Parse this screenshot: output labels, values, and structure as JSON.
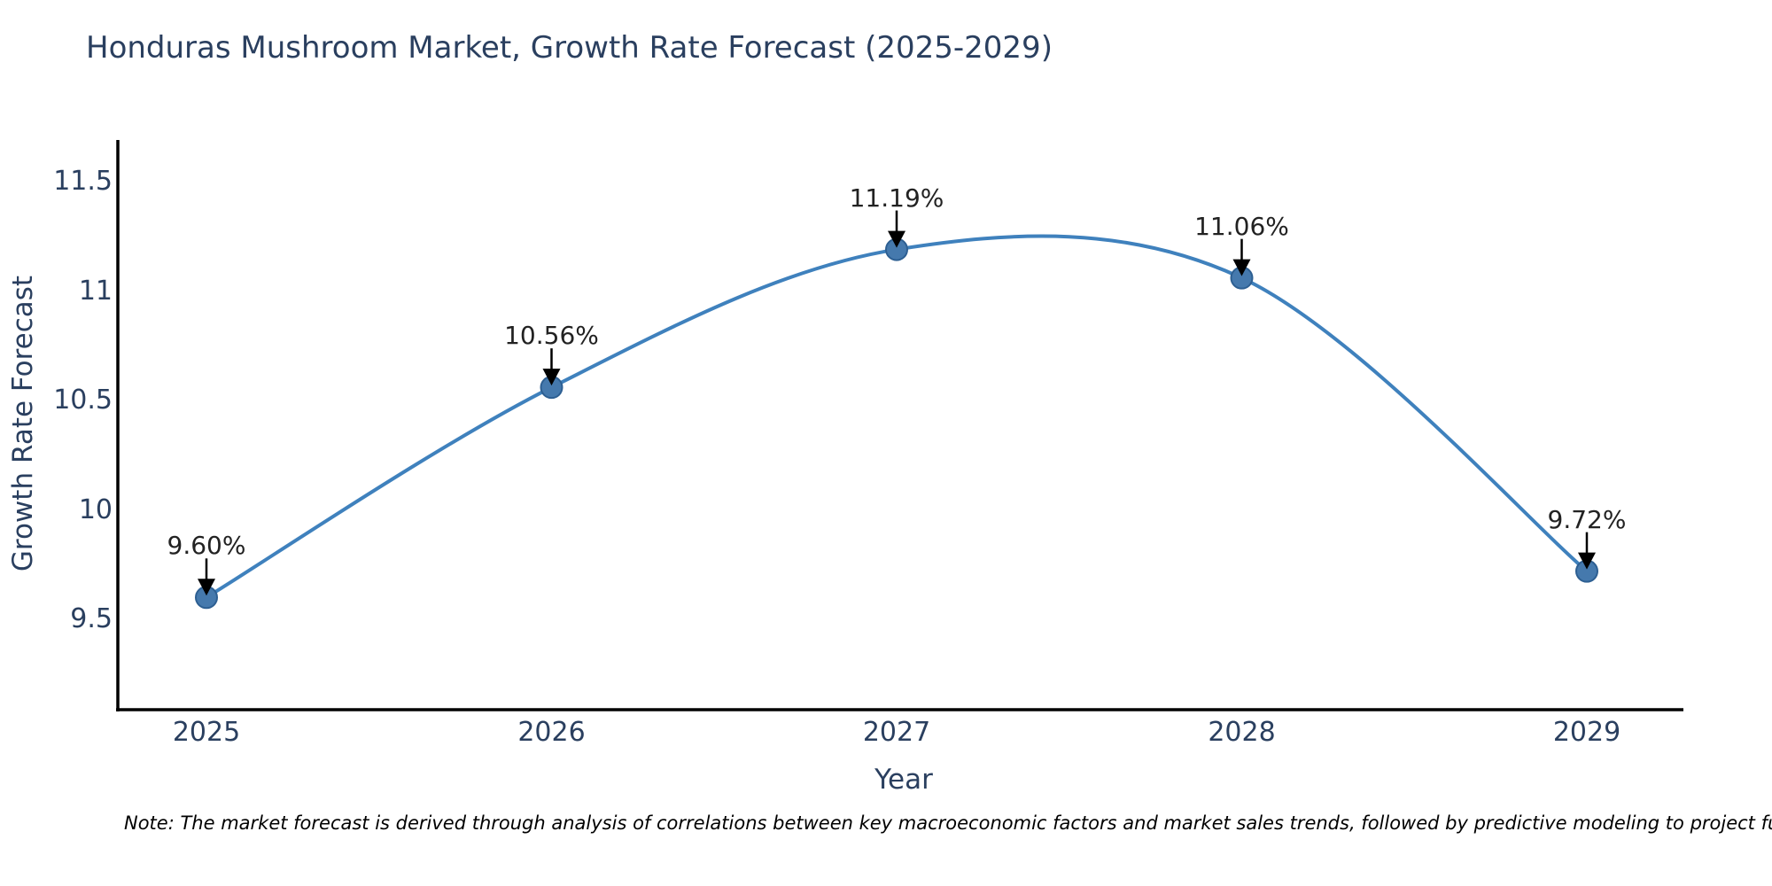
{
  "chart_data": {
    "type": "line",
    "line_shape": "spline",
    "title": "Honduras Mushroom Market, Growth Rate Forecast (2025-2029)",
    "xlabel": "Year",
    "ylabel": "Growth Rate Forecast",
    "categories": [
      "2025",
      "2026",
      "2027",
      "2028",
      "2029"
    ],
    "series": [
      {
        "name": "Growth Rate Forecast",
        "values": [
          9.6,
          10.56,
          11.19,
          11.06,
          9.72
        ],
        "point_labels": [
          "9.60%",
          "10.56%",
          "11.19%",
          "11.06%",
          "9.72%"
        ]
      }
    ],
    "y_tick_labels": [
      "9.5",
      "10",
      "10.5",
      "11",
      "11.5"
    ],
    "y_tick_values": [
      9.5,
      10.0,
      10.5,
      11.0,
      11.5
    ],
    "ylim": [
      9.09,
      11.68
    ],
    "grid": false,
    "legend": false,
    "annotations_have_arrows": true,
    "colors": {
      "line": "#3f81bd",
      "marker_fill": "#4579ad",
      "marker_edge": "#2d5f92",
      "axis_line": "#000000",
      "arrow": "#000000",
      "text": "#2a3f5f",
      "annotation_text": "#222222"
    }
  },
  "note": "Note: The market forecast is derived through analysis of correlations between key macroeconomic factors and market sales trends, followed by predictive modeling to project future sales"
}
